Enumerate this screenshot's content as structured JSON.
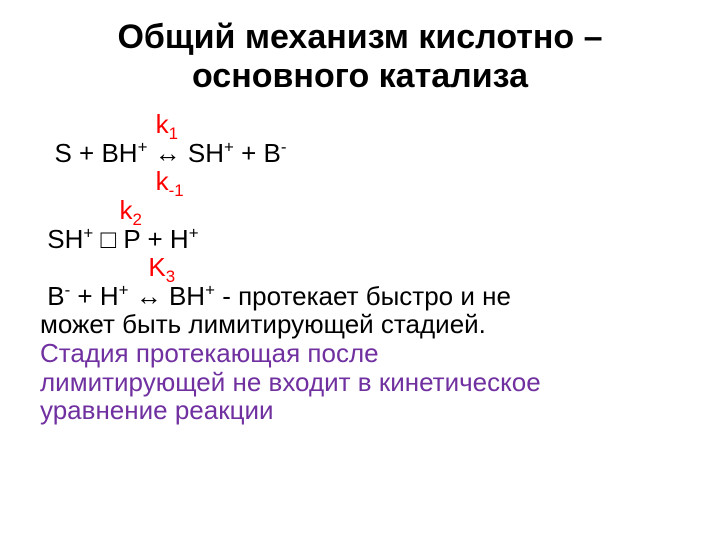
{
  "title_l1": "Общий механизм кислотно –",
  "title_l2": "основного катализа",
  "k1_indent": "                ",
  "k1_base": "k",
  "k1_sub": "1",
  "eq1_pre": "  ",
  "eq1_S": "S + ",
  "eq1_BH": "BH",
  "eq1_BH_sup": "+",
  "eq1_arrow": " ↔ ",
  "eq1_SH": "SH",
  "eq1_SH_sup": "+",
  "eq1_plus": " + ",
  "eq1_B": "B",
  "eq1_B_sup": "-",
  "km1_indent": "                ",
  "km1_base": "k",
  "km1_sub": "-1",
  "k2_indent": "           ",
  "k2_base": "k",
  "k2_sub": "2",
  "eq2_pre": " ",
  "eq2_SH": "SH",
  "eq2_SH_sup": "+",
  "eq2_gap": "  ",
  "eq2_box": "□",
  "eq2_P": " P + H",
  "eq2_H_sup": "+",
  "k3_indent": "               ",
  "k3_base": "K",
  "k3_sub": "3",
  "eq3_pre": " ",
  "eq3_B": "B",
  "eq3_B_sup": "-",
  "eq3_Hpart": " + H",
  "eq3_H_sup": "+",
  "eq3_sp": " ",
  "eq3_arrow": "↔ ",
  "eq3_BH": "BH",
  "eq3_BH_sup": "+",
  "eq3_dash": "  -  ",
  "eq3_tail1": "протекает быстро и не",
  "eq3_tail2": "может быть лимитирующей стадией.",
  "footer1": "Стадия протекающая после",
  "footer2": "лимитирующей не входит в кинетическое",
  "footer3": "уравнение реакции",
  "colors": {
    "title": "#000000",
    "red": "#ff0000",
    "black": "#000000",
    "purple": "#7030a0",
    "bg": "#ffffff"
  },
  "fontsize": {
    "title": 34,
    "body": 26
  }
}
